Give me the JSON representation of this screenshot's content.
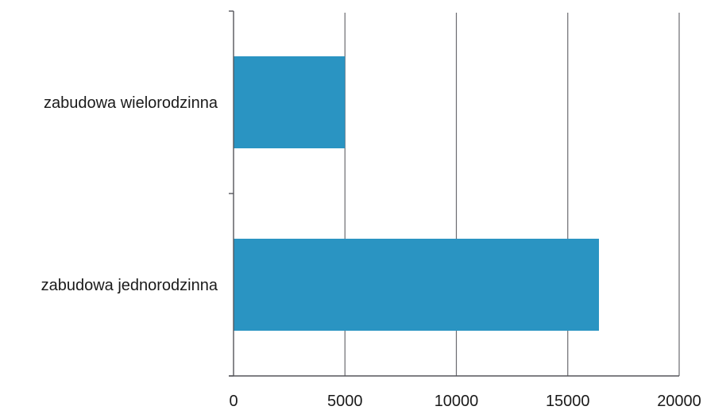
{
  "chart_data": {
    "type": "bar",
    "orientation": "horizontal",
    "title": "",
    "xlabel": "",
    "ylabel": "",
    "categories": [
      "zabudowa wielorodzinna",
      "zabudowa jednorodzinna"
    ],
    "values": [
      5000,
      16400
    ],
    "xlim": [
      0,
      20000
    ],
    "x_ticks": [
      0,
      5000,
      10000,
      15000,
      20000
    ],
    "x_tick_labels": [
      "0",
      "5000",
      "10000",
      "15000",
      "20000"
    ],
    "grid": "vertical",
    "legend": "none",
    "colors": {
      "bar": "#2a94c2",
      "grid": "#6b6b70",
      "axis": "#55555a",
      "text": "#1a1a1a"
    }
  }
}
